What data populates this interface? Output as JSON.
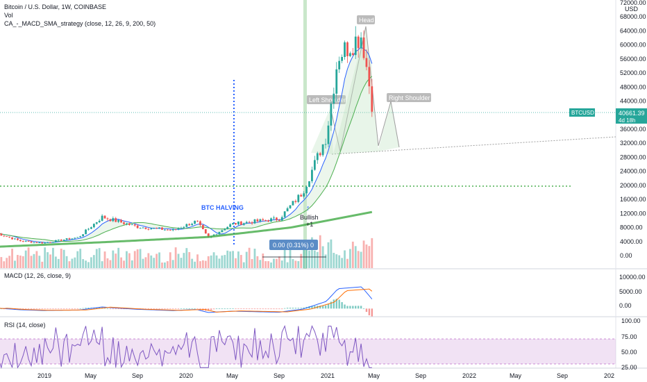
{
  "header": {
    "title": "Bitcoin / U.S. Dollar, 1W, COINBASE",
    "vol_label": "Vol",
    "strategy_label": "CA_-_MACD_SMA_strategy (close, 12, 26, 9, 200, 50)"
  },
  "price_axis": {
    "unit": "USD",
    "ticks": [
      "72000.00",
      "68000.00",
      "64000.00",
      "60000.00",
      "56000.00",
      "52000.00",
      "48000.00",
      "44000.00",
      "40000.00",
      "36000.00",
      "32000.00",
      "28000.00",
      "24000.00",
      "20000.00",
      "16000.00",
      "12000.00",
      "8000.00",
      "4000.00",
      "0.00"
    ]
  },
  "last_price": {
    "symbol": "BTCUSD",
    "value": "40661.39",
    "countdown": "4d 18h",
    "color": "#26a69a"
  },
  "annotations": {
    "halving": "BTC HALVING",
    "head": "Head",
    "left_shoulder": "Left Shoulder",
    "right_shoulder": "Right Shoulder",
    "bullish": "Bullish",
    "bullish_sub": "+1",
    "measure": "0.00 (0.31%) 0"
  },
  "macd_pane": {
    "label": "MACD (12, 26, close, 9)",
    "ticks": [
      "10000.00",
      "5000.00",
      "0.00"
    ]
  },
  "rsi_pane": {
    "label": "RSI (14, close)",
    "ticks": [
      "100.00",
      "75.00",
      "50.00",
      "25.00"
    ]
  },
  "time_axis": {
    "labels": [
      "2019",
      "May",
      "Sep",
      "2020",
      "May",
      "Sep",
      "2021",
      "May",
      "Sep",
      "2022",
      "May",
      "Sep",
      "202"
    ]
  },
  "colors": {
    "up": "#26a69a",
    "down": "#ef5350",
    "sma_long": "#4caf50",
    "halving_line": "#2962ff",
    "rsi_band": "#e1bee7"
  },
  "chart_data": {
    "type": "candlestick",
    "title": "Bitcoin / U.S. Dollar, 1W, COINBASE",
    "ylabel": "USD",
    "ylim": [
      -2000,
      72000
    ],
    "close_anchors": [
      {
        "date": "2018-09",
        "close": 6500
      },
      {
        "date": "2018-11",
        "close": 4200
      },
      {
        "date": "2019-01",
        "close": 3600
      },
      {
        "date": "2019-04",
        "close": 5200
      },
      {
        "date": "2019-06",
        "close": 11000
      },
      {
        "date": "2019-09",
        "close": 8200
      },
      {
        "date": "2019-12",
        "close": 7200
      },
      {
        "date": "2020-02",
        "close": 9800
      },
      {
        "date": "2020-03",
        "close": 5000
      },
      {
        "date": "2020-05",
        "close": 9000
      },
      {
        "date": "2020-09",
        "close": 10500
      },
      {
        "date": "2020-11",
        "close": 18000
      },
      {
        "date": "2021-01",
        "close": 34000
      },
      {
        "date": "2021-02",
        "close": 57000
      },
      {
        "date": "2021-04",
        "close": 63000
      },
      {
        "date": "2021-05",
        "close": 40661
      }
    ],
    "sma_long_anchors": [
      {
        "date": "2018-09",
        "value": 2500
      },
      {
        "date": "2019-06",
        "value": 3800
      },
      {
        "date": "2020-03",
        "value": 5300
      },
      {
        "date": "2020-10",
        "value": 8000
      },
      {
        "date": "2021-05",
        "value": 12500
      }
    ],
    "levels": [
      {
        "name": "support",
        "value": 20000
      },
      {
        "name": "current",
        "value": 40661
      }
    ],
    "macd_ylim": [
      -2000,
      12000
    ],
    "rsi_ylim": [
      20,
      100
    ],
    "rsi_band": [
      30,
      70
    ]
  }
}
